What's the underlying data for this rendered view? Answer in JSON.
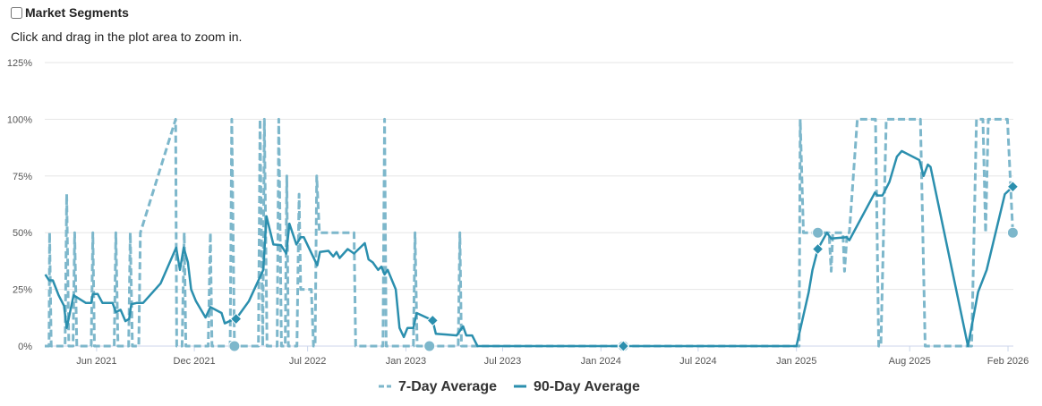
{
  "header": {
    "title": "Market Segments",
    "checked": false,
    "hint": "Click and drag in the plot area to zoom in."
  },
  "colors": {
    "seven_day": "#7db7cb",
    "ninety_day": "#2b8fae",
    "grid": "#e6e6e6",
    "axis": "#ccd6eb"
  },
  "chart_data": {
    "type": "line",
    "title": "",
    "xlabel": "",
    "ylabel": "",
    "xlim": [
      "2021-02-24",
      "2026-02-11"
    ],
    "ylim": [
      0,
      125
    ],
    "grid": true,
    "legend_position": "bottom-center",
    "y_ticks": [
      0,
      25,
      50,
      75,
      100,
      125
    ],
    "y_tick_labels": [
      "0%",
      "25%",
      "50%",
      "75%",
      "100%",
      "125%"
    ],
    "x_ticks": [
      {
        "date": "2021-06-01",
        "label": "Jun 2021"
      },
      {
        "date": "2021-12-01",
        "label": "Dec 2021"
      },
      {
        "date": "2022-07-01",
        "label": "Jul 2022"
      },
      {
        "date": "2023-01-01",
        "label": "Jan 2023"
      },
      {
        "date": "2023-07-01",
        "label": "Jul 2023"
      },
      {
        "date": "2024-01-01",
        "label": "Jan 2024"
      },
      {
        "date": "2024-07-01",
        "label": "Jul 2024"
      },
      {
        "date": "2025-01-01",
        "label": "Jan 2025"
      },
      {
        "date": "2025-08-01",
        "label": "Aug 2025"
      },
      {
        "date": "2026-02-01",
        "label": "Feb 2026"
      }
    ],
    "series": [
      {
        "name": "7-Day Average",
        "style": "dashed",
        "markers": [
          [
            "2022-02-14",
            0
          ],
          [
            "2023-02-14",
            0
          ],
          [
            "2024-02-12",
            0
          ],
          [
            "2025-02-10",
            50
          ],
          [
            "2026-02-10",
            50
          ]
        ],
        "points": [
          [
            "2021-02-24",
            0
          ],
          [
            "2021-03-04",
            0
          ],
          [
            "2021-03-05",
            50
          ],
          [
            "2021-03-08",
            0
          ],
          [
            "2021-04-03",
            0
          ],
          [
            "2021-04-06",
            67
          ],
          [
            "2021-04-10",
            0
          ],
          [
            "2021-04-18",
            0
          ],
          [
            "2021-04-21",
            50
          ],
          [
            "2021-04-25",
            0
          ],
          [
            "2021-05-22",
            0
          ],
          [
            "2021-05-25",
            50
          ],
          [
            "2021-05-28",
            0
          ],
          [
            "2021-07-04",
            0
          ],
          [
            "2021-07-07",
            50
          ],
          [
            "2021-07-11",
            0
          ],
          [
            "2021-07-31",
            0
          ],
          [
            "2021-08-03",
            50
          ],
          [
            "2021-08-07",
            0
          ],
          [
            "2021-08-19",
            0
          ],
          [
            "2021-08-22",
            50
          ],
          [
            "2021-10-27",
            100
          ],
          [
            "2021-10-29",
            0
          ],
          [
            "2021-11-08",
            0
          ],
          [
            "2021-11-12",
            50
          ],
          [
            "2021-11-15",
            0
          ],
          [
            "2021-12-27",
            0
          ],
          [
            "2021-12-31",
            50
          ],
          [
            "2022-01-03",
            0
          ],
          [
            "2022-02-06",
            0
          ],
          [
            "2022-02-09",
            100
          ],
          [
            "2022-02-14",
            0
          ],
          [
            "2022-03-31",
            0
          ],
          [
            "2022-04-03",
            100
          ],
          [
            "2022-04-08",
            0
          ],
          [
            "2022-04-11",
            100
          ],
          [
            "2022-04-16",
            0
          ],
          [
            "2022-05-05",
            0
          ],
          [
            "2022-05-08",
            100
          ],
          [
            "2022-05-13",
            0
          ],
          [
            "2022-05-20",
            0
          ],
          [
            "2022-05-23",
            75
          ],
          [
            "2022-05-26",
            0
          ],
          [
            "2022-06-11",
            0
          ],
          [
            "2022-06-15",
            67
          ],
          [
            "2022-06-18",
            25
          ],
          [
            "2022-07-08",
            25
          ],
          [
            "2022-07-12",
            0
          ],
          [
            "2022-07-15",
            0
          ],
          [
            "2022-07-18",
            75
          ],
          [
            "2022-07-23",
            50
          ],
          [
            "2022-09-26",
            50
          ],
          [
            "2022-09-29",
            0
          ],
          [
            "2022-11-19",
            0
          ],
          [
            "2022-11-22",
            100
          ],
          [
            "2022-11-25",
            0
          ],
          [
            "2023-01-15",
            0
          ],
          [
            "2023-01-18",
            50
          ],
          [
            "2023-01-22",
            0
          ],
          [
            "2023-04-09",
            0
          ],
          [
            "2023-04-12",
            50
          ],
          [
            "2023-04-15",
            0
          ],
          [
            "2025-01-06",
            0
          ],
          [
            "2025-01-08",
            100
          ],
          [
            "2025-01-14",
            50
          ],
          [
            "2025-03-03",
            50
          ],
          [
            "2025-03-07",
            33
          ],
          [
            "2025-03-10",
            50
          ],
          [
            "2025-03-29",
            50
          ],
          [
            "2025-04-01",
            33
          ],
          [
            "2025-04-06",
            50
          ],
          [
            "2025-04-10",
            50
          ],
          [
            "2025-04-25",
            100
          ],
          [
            "2025-05-29",
            100
          ],
          [
            "2025-06-04",
            0
          ],
          [
            "2025-06-08",
            0
          ],
          [
            "2025-06-18",
            100
          ],
          [
            "2025-08-21",
            100
          ],
          [
            "2025-08-30",
            0
          ],
          [
            "2025-11-25",
            0
          ],
          [
            "2025-12-04",
            100
          ],
          [
            "2025-12-16",
            100
          ],
          [
            "2025-12-21",
            50
          ],
          [
            "2025-12-26",
            100
          ],
          [
            "2026-01-23",
            100
          ],
          [
            "2026-01-31",
            100
          ],
          [
            "2026-02-10",
            50
          ]
        ]
      },
      {
        "name": "90-Day Average",
        "style": "solid",
        "markers": [
          [
            "2022-02-17",
            12
          ],
          [
            "2023-02-20",
            11.3
          ],
          [
            "2024-02-12",
            0
          ],
          [
            "2025-02-10",
            42.8
          ],
          [
            "2026-02-10",
            70.3
          ]
        ],
        "points": [
          [
            "2021-02-25",
            31.6
          ],
          [
            "2021-03-04",
            29
          ],
          [
            "2021-03-11",
            29
          ],
          [
            "2021-03-22",
            22.4
          ],
          [
            "2021-04-01",
            17.8
          ],
          [
            "2021-04-06",
            8
          ],
          [
            "2021-04-19",
            22.4
          ],
          [
            "2021-05-12",
            19
          ],
          [
            "2021-05-22",
            19
          ],
          [
            "2021-05-25",
            23
          ],
          [
            "2021-06-03",
            23
          ],
          [
            "2021-06-12",
            19
          ],
          [
            "2021-07-01",
            19
          ],
          [
            "2021-07-07",
            15
          ],
          [
            "2021-07-16",
            16
          ],
          [
            "2021-07-25",
            11
          ],
          [
            "2021-08-01",
            12
          ],
          [
            "2021-08-05",
            18.5
          ],
          [
            "2021-08-15",
            19
          ],
          [
            "2021-08-27",
            19
          ],
          [
            "2021-09-29",
            27.7
          ],
          [
            "2021-10-28",
            43.4
          ],
          [
            "2021-11-04",
            33.6
          ],
          [
            "2021-11-11",
            43.4
          ],
          [
            "2021-11-19",
            36.9
          ],
          [
            "2021-11-25",
            25
          ],
          [
            "2021-12-04",
            19.8
          ],
          [
            "2021-12-22",
            12.6
          ],
          [
            "2021-12-31",
            17.2
          ],
          [
            "2022-01-21",
            14.6
          ],
          [
            "2022-01-27",
            10
          ],
          [
            "2022-02-08",
            11.3
          ],
          [
            "2022-02-17",
            12
          ],
          [
            "2022-03-13",
            19.8
          ],
          [
            "2022-04-09",
            33.6
          ],
          [
            "2022-04-15",
            57.2
          ],
          [
            "2022-04-28",
            44.8
          ],
          [
            "2022-05-12",
            44.5
          ],
          [
            "2022-05-22",
            40.8
          ],
          [
            "2022-05-28",
            54
          ],
          [
            "2022-06-10",
            44.8
          ],
          [
            "2022-06-18",
            48
          ],
          [
            "2022-06-24",
            48
          ],
          [
            "2022-07-19",
            35.6
          ],
          [
            "2022-07-24",
            41.5
          ],
          [
            "2022-08-09",
            42
          ],
          [
            "2022-08-18",
            39.5
          ],
          [
            "2022-08-24",
            41.5
          ],
          [
            "2022-08-30",
            38.8
          ],
          [
            "2022-09-14",
            42.8
          ],
          [
            "2022-09-26",
            40.8
          ],
          [
            "2022-10-16",
            45.4
          ],
          [
            "2022-10-23",
            38.2
          ],
          [
            "2022-10-31",
            36.9
          ],
          [
            "2022-11-10",
            33.6
          ],
          [
            "2022-11-16",
            35
          ],
          [
            "2022-11-22",
            31.6
          ],
          [
            "2022-11-28",
            33.6
          ],
          [
            "2022-12-13",
            25
          ],
          [
            "2022-12-20",
            8
          ],
          [
            "2022-12-28",
            4
          ],
          [
            "2023-01-04",
            8
          ],
          [
            "2023-01-15",
            8
          ],
          [
            "2023-01-21",
            14.6
          ],
          [
            "2023-02-20",
            11.3
          ],
          [
            "2023-02-26",
            5.4
          ],
          [
            "2023-03-18",
            5.1
          ],
          [
            "2023-04-06",
            4.7
          ],
          [
            "2023-04-18",
            8.7
          ],
          [
            "2023-04-24",
            4.7
          ],
          [
            "2023-05-05",
            4.7
          ],
          [
            "2023-05-15",
            0
          ],
          [
            "2025-01-01",
            0
          ],
          [
            "2025-01-24",
            23.8
          ],
          [
            "2025-01-31",
            33.6
          ],
          [
            "2025-02-10",
            42.8
          ],
          [
            "2025-02-27",
            50
          ],
          [
            "2025-03-07",
            47.4
          ],
          [
            "2025-04-05",
            48
          ],
          [
            "2025-04-10",
            46.7
          ],
          [
            "2025-05-28",
            67.7
          ],
          [
            "2025-06-02",
            66.4
          ],
          [
            "2025-06-11",
            66.4
          ],
          [
            "2025-06-24",
            72.3
          ],
          [
            "2025-07-08",
            83.5
          ],
          [
            "2025-07-17",
            86
          ],
          [
            "2025-08-19",
            82
          ],
          [
            "2025-08-27",
            75
          ],
          [
            "2025-09-04",
            80
          ],
          [
            "2025-09-09",
            79
          ],
          [
            "2025-11-18",
            0
          ],
          [
            "2025-12-07",
            23.8
          ],
          [
            "2025-12-23",
            33.6
          ],
          [
            "2026-01-26",
            67
          ],
          [
            "2026-02-10",
            70.3
          ]
        ]
      }
    ]
  }
}
